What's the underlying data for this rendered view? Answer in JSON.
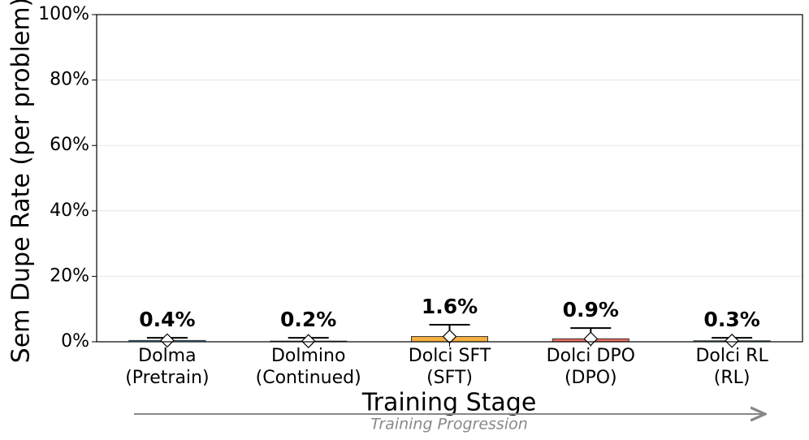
{
  "chart_data": {
    "type": "bar",
    "y_label": "Sem Dupe Rate (per problem)",
    "x_label": "Training Stage",
    "annotation": "Training Progression",
    "categories": [
      [
        "Dolma",
        "(Pretrain)"
      ],
      [
        "Dolmino",
        "(Continued)"
      ],
      [
        "Dolci SFT",
        "(SFT)"
      ],
      [
        "Dolci DPO",
        "(DPO)"
      ],
      [
        "Dolci RL",
        "(RL)"
      ]
    ],
    "values": [
      0.4,
      0.2,
      1.6,
      0.9,
      0.3
    ],
    "value_labels": [
      "0.4%",
      "0.2%",
      "1.6%",
      "0.9%",
      "0.3%"
    ],
    "errors": [
      0.8,
      1.0,
      3.6,
      3.3,
      0.9
    ],
    "colors": [
      "#5dade2",
      "#48c9b0",
      "#f5b041",
      "#ec7063",
      "#58d68d"
    ],
    "ylim": [
      0,
      100
    ],
    "yticks": [
      {
        "value": 0,
        "label": "0%"
      },
      {
        "value": 20,
        "label": "20%"
      },
      {
        "value": 40,
        "label": "40%"
      },
      {
        "value": 60,
        "label": "60%"
      },
      {
        "value": 80,
        "label": "80%"
      },
      {
        "value": 100,
        "label": "100%"
      }
    ],
    "grid": true
  }
}
